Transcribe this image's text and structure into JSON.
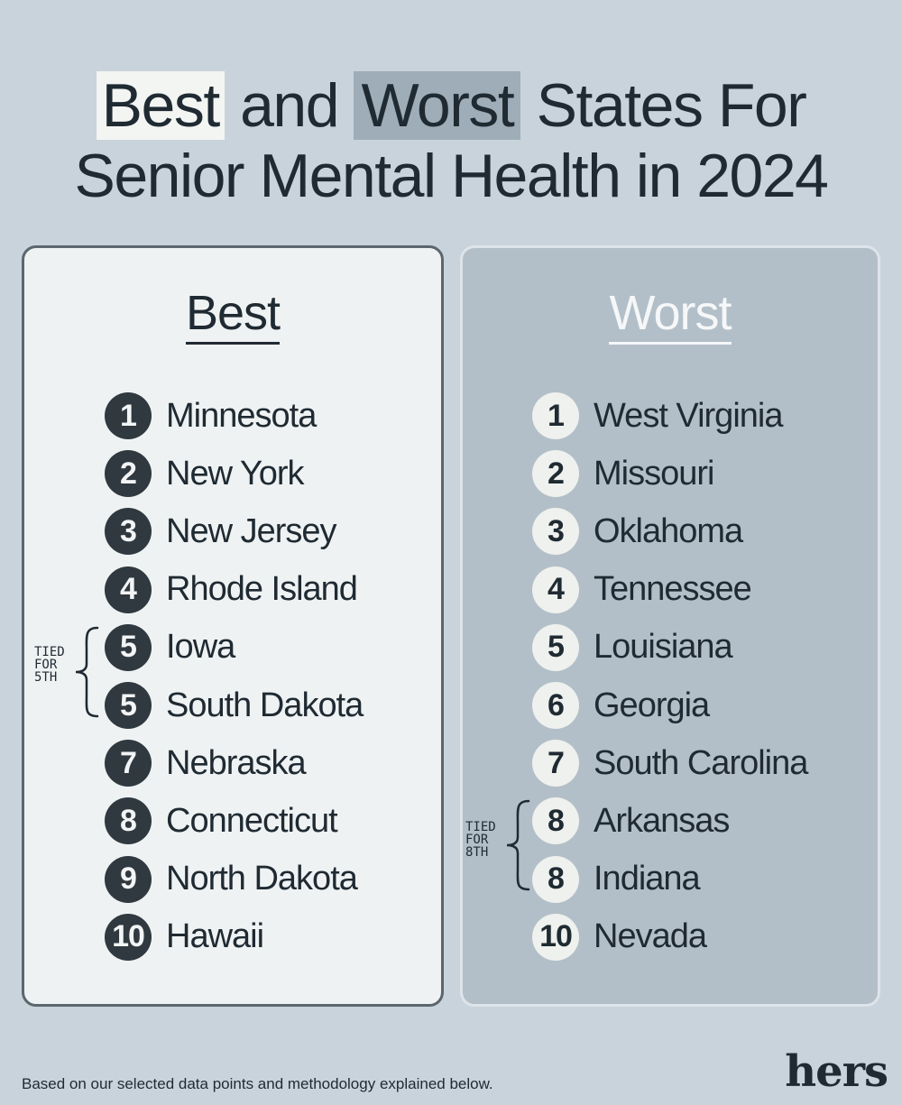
{
  "title": {
    "word_best": "Best",
    "word_and": " and ",
    "word_worst": "Worst",
    "rest_line1": " States For",
    "line2": "Senior Mental Health in 2024"
  },
  "best": {
    "heading": "Best",
    "items": [
      {
        "rank": "1",
        "state": "Minnesota"
      },
      {
        "rank": "2",
        "state": "New York"
      },
      {
        "rank": "3",
        "state": "New Jersey"
      },
      {
        "rank": "4",
        "state": "Rhode Island"
      },
      {
        "rank": "5",
        "state": "Iowa"
      },
      {
        "rank": "5",
        "state": "South Dakota"
      },
      {
        "rank": "7",
        "state": "Nebraska"
      },
      {
        "rank": "8",
        "state": "Connecticut"
      },
      {
        "rank": "9",
        "state": "North Dakota"
      },
      {
        "rank": "10",
        "state": "Hawaii"
      }
    ],
    "tie_note": [
      "TIED",
      "FOR",
      "5TH"
    ]
  },
  "worst": {
    "heading": "Worst",
    "items": [
      {
        "rank": "1",
        "state": "West Virginia"
      },
      {
        "rank": "2",
        "state": "Missouri"
      },
      {
        "rank": "3",
        "state": "Oklahoma"
      },
      {
        "rank": "4",
        "state": "Tennessee"
      },
      {
        "rank": "5",
        "state": "Louisiana"
      },
      {
        "rank": "6",
        "state": "Georgia"
      },
      {
        "rank": "7",
        "state": "South Carolina"
      },
      {
        "rank": "8",
        "state": "Arkansas"
      },
      {
        "rank": "8",
        "state": "Indiana"
      },
      {
        "rank": "10",
        "state": "Nevada"
      }
    ],
    "tie_note": [
      "TIED",
      "FOR",
      "8TH"
    ]
  },
  "footnote": "Based on our selected data points and methodology explained below.",
  "logo": "hers",
  "colors": {
    "background": "#c9d3dc",
    "best_panel": "#eff2f3",
    "worst_panel": "#b3bfc8",
    "dark": "#1f2a32"
  }
}
